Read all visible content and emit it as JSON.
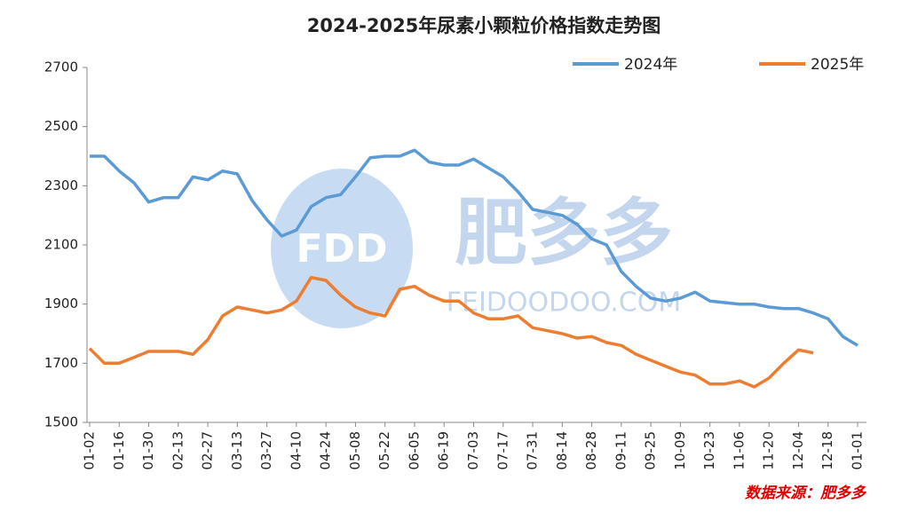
{
  "chart_data": {
    "type": "line",
    "title": "2024-2025年尿素小颗粒价格指数走势图",
    "categories": [
      "01-02",
      null,
      "01-16",
      null,
      "01-30",
      null,
      "02-13",
      null,
      "02-27",
      null,
      "03-13",
      null,
      "03-27",
      null,
      "04-10",
      null,
      "04-24",
      null,
      "05-08",
      null,
      "05-22",
      null,
      "06-05",
      null,
      "06-19",
      null,
      "07-03",
      null,
      "07-17",
      null,
      "07-31",
      null,
      "08-14",
      null,
      "08-28",
      null,
      "09-11",
      null,
      "09-25",
      null,
      "10-09",
      null,
      "10-23",
      null,
      "11-06",
      null,
      "11-20",
      null,
      "12-04",
      null,
      "12-18",
      null,
      "01-01"
    ],
    "series": [
      {
        "name": "2024年",
        "color": "#5b9bd5",
        "values": [
          2400,
          2400,
          2350,
          2310,
          2245,
          2260,
          2260,
          2330,
          2320,
          2350,
          2340,
          2250,
          2185,
          2130,
          2150,
          2230,
          2260,
          2270,
          2330,
          2395,
          2400,
          2400,
          2420,
          2380,
          2370,
          2370,
          2390,
          2360,
          2330,
          2280,
          2220,
          2210,
          2200,
          2170,
          2120,
          2100,
          2010,
          1960,
          1920,
          1910,
          1920,
          1940,
          1910,
          1905,
          1900,
          1900,
          1890,
          1885,
          1885,
          1870,
          1850,
          1790,
          1760
        ]
      },
      {
        "name": "2025年",
        "color": "#ed7d31",
        "values": [
          1750,
          1700,
          1700,
          1720,
          1740,
          1740,
          1740,
          1730,
          1780,
          1860,
          1890,
          1880,
          1870,
          1880,
          1910,
          1990,
          1980,
          1930,
          1890,
          1870,
          1860,
          1950,
          1960,
          1930,
          1910,
          1910,
          1870,
          1850,
          1850,
          1860,
          1820,
          1810,
          1800,
          1785,
          1790,
          1770,
          1760,
          1730,
          1710,
          1690,
          1670,
          1660,
          1630,
          1630,
          1640,
          1620,
          1650,
          1700,
          1745,
          1735,
          null,
          null,
          null
        ]
      }
    ],
    "ylim": [
      1500,
      2700
    ],
    "yticks": [
      1500,
      1700,
      1900,
      2100,
      2300,
      2500,
      2700
    ],
    "legend": "top-right",
    "source": "数据来源：肥多多",
    "watermark": {
      "logo": "FDD",
      "name": "肥多多",
      "site": "FEIDOODOO.COM"
    }
  }
}
